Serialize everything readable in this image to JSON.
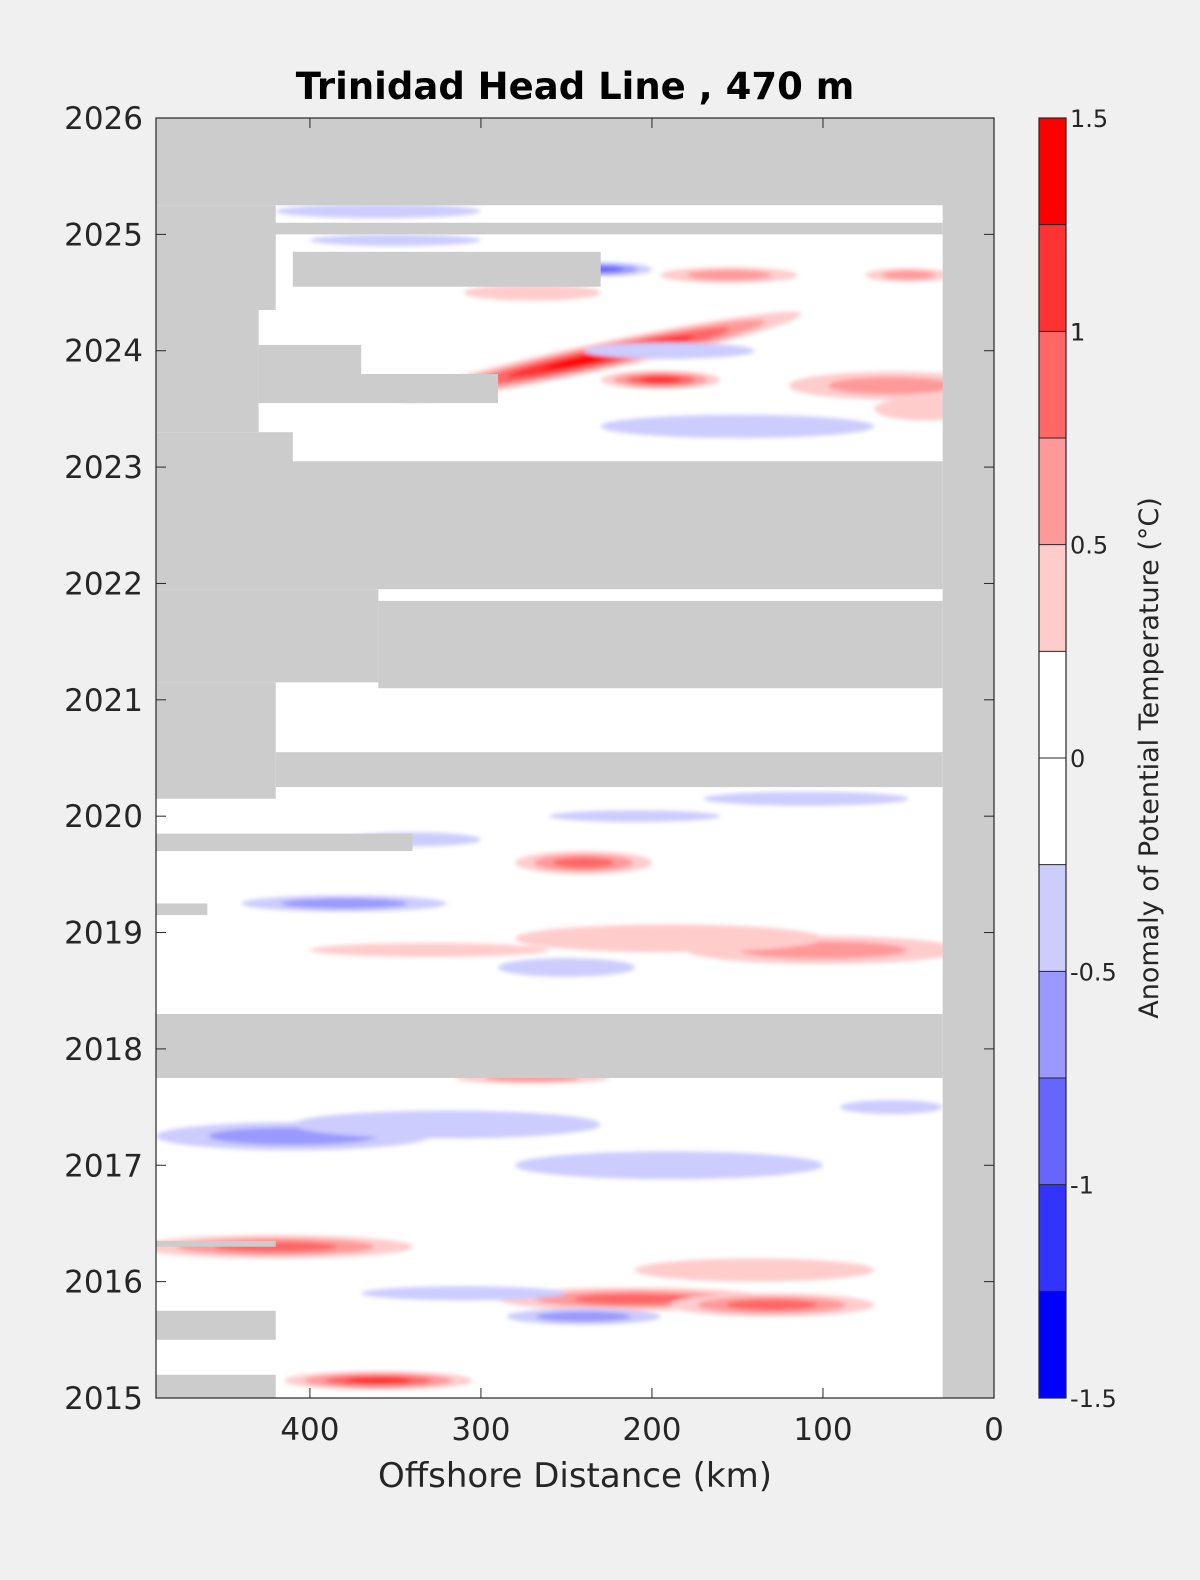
{
  "chart_data": {
    "type": "heatmap",
    "title": "Trinidad Head Line , 470 m",
    "xlabel": "Offshore Distance (km)",
    "ylabel": "",
    "xlim": [
      490,
      0
    ],
    "x_reversed": true,
    "ylim": [
      2015,
      2026
    ],
    "x_ticks": [
      400,
      300,
      200,
      100,
      0
    ],
    "x_tick_labels": [
      "400",
      "300",
      "200",
      "100",
      "0"
    ],
    "y_ticks": [
      2015,
      2016,
      2017,
      2018,
      2019,
      2020,
      2021,
      2022,
      2023,
      2024,
      2025,
      2026
    ],
    "y_tick_labels": [
      "2015",
      "2016",
      "2017",
      "2018",
      "2019",
      "2020",
      "2021",
      "2022",
      "2023",
      "2024",
      "2025",
      "2026"
    ],
    "missing_color": "#cccccc",
    "colorbar": {
      "label": "Anomaly of Potential Temperature (°C)",
      "range": [
        -1.5,
        1.5
      ],
      "tick_values": [
        -1.5,
        -0.5,
        0,
        0.5,
        1,
        1.5
      ],
      "tick_labels": [
        "-1.5",
        "-0.5",
        "0",
        "0.5",
        "1",
        "1.5"
      ],
      "level_labels": [
        "-1",
        "1"
      ],
      "colors": [
        "#0000ff",
        "#3333ff",
        "#6666ff",
        "#9999ff",
        "#ccccff",
        "#ffffff",
        "#ffffff",
        "#ffcccc",
        "#ff9999",
        "#ff6666",
        "#ff3333",
        "#ff0000"
      ]
    },
    "no_data_bands": [
      {
        "y": [
          2025.25,
          2026
        ],
        "x": [
          490,
          0
        ]
      },
      {
        "y": [
          2024.35,
          2025.25
        ],
        "x": [
          490,
          420
        ]
      },
      {
        "y": [
          2025.0,
          2025.1
        ],
        "x": [
          430,
          30
        ]
      },
      {
        "y": [
          2024.55,
          2024.85
        ],
        "x": [
          410,
          230
        ]
      },
      {
        "y": [
          2023.3,
          2024.35
        ],
        "x": [
          490,
          430
        ]
      },
      {
        "y": [
          2023.8,
          2024.05
        ],
        "x": [
          430,
          370
        ]
      },
      {
        "y": [
          2023.55,
          2023.8
        ],
        "x": [
          430,
          290
        ]
      },
      {
        "y": [
          2023.0,
          2023.3
        ],
        "x": [
          490,
          410
        ]
      },
      {
        "y": [
          2021.95,
          2023.05
        ],
        "x": [
          490,
          30
        ]
      },
      {
        "y": [
          2021.15,
          2021.95
        ],
        "x": [
          490,
          360
        ]
      },
      {
        "y": [
          2021.1,
          2021.85
        ],
        "x": [
          360,
          30
        ]
      },
      {
        "y": [
          2020.15,
          2021.15
        ],
        "x": [
          490,
          420
        ]
      },
      {
        "y": [
          2020.25,
          2020.55
        ],
        "x": [
          420,
          30
        ]
      },
      {
        "y": [
          2019.7,
          2019.85
        ],
        "x": [
          490,
          340
        ]
      },
      {
        "y": [
          2019.15,
          2019.25
        ],
        "x": [
          490,
          460
        ]
      },
      {
        "y": [
          2017.75,
          2018.3
        ],
        "x": [
          490,
          30
        ]
      },
      {
        "y": [
          2016.3,
          2016.35
        ],
        "x": [
          490,
          420
        ]
      },
      {
        "y": [
          2015.5,
          2015.75
        ],
        "x": [
          490,
          420
        ]
      },
      {
        "y": [
          2015.0,
          2015.2
        ],
        "x": [
          490,
          420
        ]
      },
      {
        "y": [
          2015,
          2026
        ],
        "x": [
          30,
          0
        ]
      }
    ],
    "anomaly_features": [
      {
        "x": 230,
        "y": 2023.95,
        "rx": 120,
        "ry": 0.12,
        "value": 1.4,
        "angle": -12
      },
      {
        "x": 195,
        "y": 2023.75,
        "rx": 35,
        "ry": 0.08,
        "value": 1.1
      },
      {
        "x": 60,
        "y": 2023.7,
        "rx": 60,
        "ry": 0.12,
        "value": 0.7
      },
      {
        "x": 40,
        "y": 2023.5,
        "rx": 30,
        "ry": 0.1,
        "value": 0.4
      },
      {
        "x": 155,
        "y": 2024.65,
        "rx": 40,
        "ry": 0.07,
        "value": 0.6
      },
      {
        "x": 50,
        "y": 2024.65,
        "rx": 25,
        "ry": 0.06,
        "value": 0.6
      },
      {
        "x": 270,
        "y": 2024.5,
        "rx": 40,
        "ry": 0.07,
        "value": 0.5
      },
      {
        "x": 230,
        "y": 2024.7,
        "rx": 30,
        "ry": 0.06,
        "value": -0.8
      },
      {
        "x": 150,
        "y": 2023.35,
        "rx": 80,
        "ry": 0.1,
        "value": -0.5
      },
      {
        "x": 360,
        "y": 2025.2,
        "rx": 60,
        "ry": 0.06,
        "value": -0.5
      },
      {
        "x": 350,
        "y": 2024.95,
        "rx": 50,
        "ry": 0.05,
        "value": -0.4
      },
      {
        "x": 190,
        "y": 2024.0,
        "rx": 50,
        "ry": 0.07,
        "value": -0.3
      },
      {
        "x": 240,
        "y": 2019.6,
        "rx": 40,
        "ry": 0.1,
        "value": 0.9
      },
      {
        "x": 100,
        "y": 2018.85,
        "rx": 80,
        "ry": 0.12,
        "value": 0.6
      },
      {
        "x": 190,
        "y": 2018.95,
        "rx": 90,
        "ry": 0.12,
        "value": 0.4
      },
      {
        "x": 330,
        "y": 2018.85,
        "rx": 70,
        "ry": 0.06,
        "value": 0.3
      },
      {
        "x": 380,
        "y": 2019.25,
        "rx": 60,
        "ry": 0.07,
        "value": -0.6
      },
      {
        "x": 250,
        "y": 2018.7,
        "rx": 40,
        "ry": 0.08,
        "value": -0.5
      },
      {
        "x": 340,
        "y": 2019.8,
        "rx": 40,
        "ry": 0.06,
        "value": -0.4
      },
      {
        "x": 110,
        "y": 2020.15,
        "rx": 60,
        "ry": 0.06,
        "value": -0.4
      },
      {
        "x": 210,
        "y": 2020.0,
        "rx": 50,
        "ry": 0.05,
        "value": -0.3
      },
      {
        "x": 270,
        "y": 2017.75,
        "rx": 45,
        "ry": 0.05,
        "value": 0.7
      },
      {
        "x": 410,
        "y": 2017.25,
        "rx": 80,
        "ry": 0.12,
        "value": -0.7
      },
      {
        "x": 320,
        "y": 2017.35,
        "rx": 90,
        "ry": 0.12,
        "value": -0.4
      },
      {
        "x": 190,
        "y": 2017.0,
        "rx": 90,
        "ry": 0.12,
        "value": -0.4
      },
      {
        "x": 60,
        "y": 2017.5,
        "rx": 30,
        "ry": 0.06,
        "value": -0.3
      },
      {
        "x": 420,
        "y": 2016.3,
        "rx": 80,
        "ry": 0.1,
        "value": 0.9
      },
      {
        "x": 210,
        "y": 2015.85,
        "rx": 80,
        "ry": 0.1,
        "value": 0.9
      },
      {
        "x": 130,
        "y": 2015.8,
        "rx": 60,
        "ry": 0.1,
        "value": 0.9
      },
      {
        "x": 140,
        "y": 2016.1,
        "rx": 70,
        "ry": 0.1,
        "value": 0.4
      },
      {
        "x": 360,
        "y": 2015.15,
        "rx": 55,
        "ry": 0.08,
        "value": 1.2
      },
      {
        "x": 240,
        "y": 2015.7,
        "rx": 45,
        "ry": 0.07,
        "value": -0.6
      },
      {
        "x": 310,
        "y": 2015.9,
        "rx": 60,
        "ry": 0.06,
        "value": -0.4
      }
    ]
  }
}
